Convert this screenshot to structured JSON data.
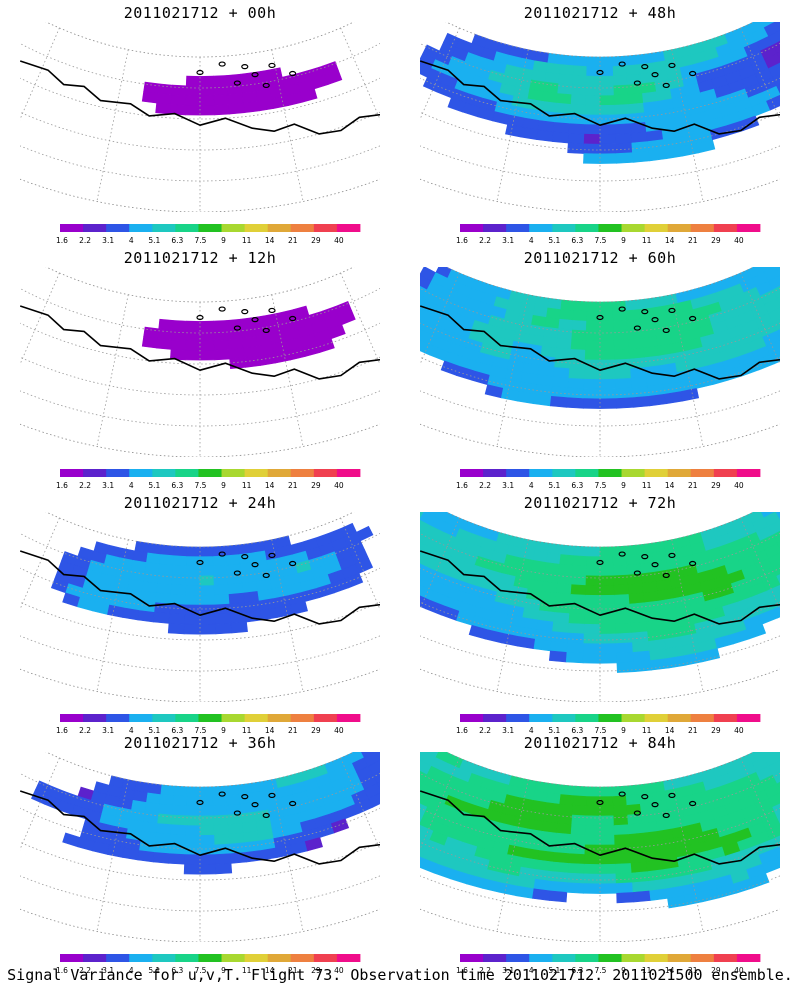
{
  "figure": {
    "caption": "Signal Variance for u,v,T. Flight 73. Observation time 2011021712. 2011021500 ensemble."
  },
  "colorbar": {
    "labels": [
      "1.6",
      "2.2",
      "3.1",
      "4",
      "5.1",
      "6.3",
      "7.5",
      "9",
      "11",
      "14",
      "21",
      "29",
      "40"
    ],
    "colors": [
      "#9900cc",
      "#5c22cc",
      "#2e55e6",
      "#1ab0f0",
      "#1ec8c0",
      "#18d488",
      "#22c222",
      "#a8d830",
      "#e0d038",
      "#e0a838",
      "#ee8040",
      "#f04050",
      "#f00d8a"
    ]
  },
  "panels": [
    {
      "id": "p00",
      "title": "2011021712 + 00h",
      "lead_hours": 0,
      "intensity": 0.1
    },
    {
      "id": "p48",
      "title": "2011021712 + 48h",
      "lead_hours": 48,
      "intensity": 0.55
    },
    {
      "id": "p12",
      "title": "2011021712 + 12h",
      "lead_hours": 12,
      "intensity": 0.18
    },
    {
      "id": "p60",
      "title": "2011021712 + 60h",
      "lead_hours": 60,
      "intensity": 0.7
    },
    {
      "id": "p24",
      "title": "2011021712 + 24h",
      "lead_hours": 24,
      "intensity": 0.32
    },
    {
      "id": "p72",
      "title": "2011021712 + 72h",
      "lead_hours": 72,
      "intensity": 0.8
    },
    {
      "id": "p36",
      "title": "2011021712 + 36h",
      "lead_hours": 36,
      "intensity": 0.42
    },
    {
      "id": "p84",
      "title": "2011021712 + 84h",
      "lead_hours": 84,
      "intensity": 0.88
    }
  ]
}
